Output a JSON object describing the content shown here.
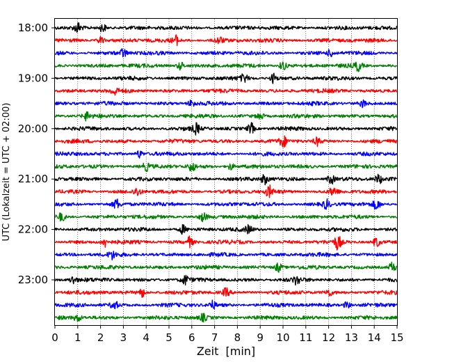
{
  "chart_data": {
    "type": "line",
    "subtype": "helicorder-seismogram",
    "xlabel": "Zeit  [min]",
    "ylabel": "UTC (Lokalzeit = UTC + 02:00)",
    "xlim": [
      0,
      15
    ],
    "xticks": [
      "0",
      "1",
      "2",
      "3",
      "4",
      "5",
      "6",
      "7",
      "8",
      "9",
      "10",
      "11",
      "12",
      "13",
      "14",
      "15"
    ],
    "y_tick_labels": [
      "18:00",
      "19:00",
      "20:00",
      "21:00",
      "22:00",
      "23:00"
    ],
    "y_tick_trace_index": [
      0,
      4,
      8,
      12,
      16,
      20
    ],
    "trace_minutes": 15,
    "vertical_grid": true,
    "vertical_grid_style": "dotted",
    "colors": [
      "#000000",
      "#ff0000",
      "#0000ff",
      "#008000"
    ],
    "traces": [
      {
        "start": "18:00",
        "color": "#000000",
        "events": [
          {
            "t": 1.0,
            "a": 1.6
          },
          {
            "t": 2.1,
            "a": 1.5
          }
        ]
      },
      {
        "start": "18:15",
        "color": "#ff0000",
        "events": [
          {
            "t": 2.0,
            "a": 1.2
          },
          {
            "t": 5.3,
            "a": 1.5
          },
          {
            "t": 7.2,
            "a": 1.1
          }
        ]
      },
      {
        "start": "18:30",
        "color": "#0000ff",
        "events": [
          {
            "t": 3.0,
            "a": 1.4
          },
          {
            "t": 12.1,
            "a": 1.1
          }
        ]
      },
      {
        "start": "18:45",
        "color": "#008000",
        "events": [
          {
            "t": 5.5,
            "a": 1.3
          },
          {
            "t": 10.0,
            "a": 1.6
          },
          {
            "t": 13.3,
            "a": 1.6
          }
        ]
      },
      {
        "start": "19:00",
        "color": "#000000",
        "events": [
          {
            "t": 8.3,
            "a": 1.3
          },
          {
            "t": 9.6,
            "a": 1.6
          }
        ]
      },
      {
        "start": "19:15",
        "color": "#ff0000",
        "events": [
          {
            "t": 2.6,
            "a": 1.2
          }
        ]
      },
      {
        "start": "19:30",
        "color": "#0000ff",
        "events": [
          {
            "t": 6.0,
            "a": 1.1
          },
          {
            "t": 13.5,
            "a": 1.1
          }
        ]
      },
      {
        "start": "19:45",
        "color": "#008000",
        "events": [
          {
            "t": 1.4,
            "a": 1.3
          },
          {
            "t": 9.0,
            "a": 1.1
          }
        ]
      },
      {
        "start": "20:00",
        "color": "#000000",
        "events": [
          {
            "t": 6.2,
            "a": 1.6
          },
          {
            "t": 8.6,
            "a": 1.8
          }
        ]
      },
      {
        "start": "20:15",
        "color": "#ff0000",
        "events": [
          {
            "t": 10.0,
            "a": 1.7
          },
          {
            "t": 11.5,
            "a": 1.3
          }
        ]
      },
      {
        "start": "20:30",
        "color": "#0000ff",
        "events": [
          {
            "t": 3.7,
            "a": 1.3
          }
        ]
      },
      {
        "start": "20:45",
        "color": "#008000",
        "events": [
          {
            "t": 4.0,
            "a": 1.2
          },
          {
            "t": 6.0,
            "a": 1.5
          },
          {
            "t": 7.7,
            "a": 1.1
          }
        ]
      },
      {
        "start": "21:00",
        "color": "#000000",
        "events": [
          {
            "t": 9.2,
            "a": 1.6
          },
          {
            "t": 12.1,
            "a": 1.6
          },
          {
            "t": 14.2,
            "a": 1.4
          }
        ]
      },
      {
        "start": "21:15",
        "color": "#ff0000",
        "events": [
          {
            "t": 3.6,
            "a": 1.3
          },
          {
            "t": 9.4,
            "a": 1.8
          },
          {
            "t": 12.2,
            "a": 1.5
          }
        ]
      },
      {
        "start": "21:30",
        "color": "#0000ff",
        "events": [
          {
            "t": 2.7,
            "a": 1.5
          },
          {
            "t": 11.9,
            "a": 1.4
          },
          {
            "t": 14.1,
            "a": 1.6
          }
        ]
      },
      {
        "start": "21:45",
        "color": "#008000",
        "events": [
          {
            "t": 0.3,
            "a": 1.3
          },
          {
            "t": 6.5,
            "a": 1.3
          }
        ]
      },
      {
        "start": "22:00",
        "color": "#000000",
        "events": [
          {
            "t": 5.6,
            "a": 1.4
          },
          {
            "t": 8.5,
            "a": 1.2
          }
        ]
      },
      {
        "start": "22:15",
        "color": "#ff0000",
        "events": [
          {
            "t": 2.2,
            "a": 1.5
          },
          {
            "t": 5.9,
            "a": 1.6
          },
          {
            "t": 12.4,
            "a": 2.2
          },
          {
            "t": 14.1,
            "a": 1.5
          }
        ]
      },
      {
        "start": "22:30",
        "color": "#0000ff",
        "events": [
          {
            "t": 2.5,
            "a": 1.2
          }
        ]
      },
      {
        "start": "22:45",
        "color": "#008000",
        "events": [
          {
            "t": 9.8,
            "a": 1.5
          },
          {
            "t": 14.8,
            "a": 1.6
          }
        ]
      },
      {
        "start": "23:00",
        "color": "#000000",
        "events": [
          {
            "t": 0.8,
            "a": 1.3
          },
          {
            "t": 5.7,
            "a": 1.5
          },
          {
            "t": 10.6,
            "a": 1.3
          }
        ]
      },
      {
        "start": "23:15",
        "color": "#ff0000",
        "events": [
          {
            "t": 3.8,
            "a": 1.5
          },
          {
            "t": 7.5,
            "a": 1.3
          },
          {
            "t": 12.0,
            "a": 1.1
          }
        ]
      },
      {
        "start": "23:30",
        "color": "#0000ff",
        "events": [
          {
            "t": 2.6,
            "a": 1.5
          },
          {
            "t": 6.9,
            "a": 1.3
          },
          {
            "t": 12.8,
            "a": 1.1
          }
        ]
      },
      {
        "start": "23:45",
        "color": "#008000",
        "events": [
          {
            "t": 1.0,
            "a": 1.1
          },
          {
            "t": 6.5,
            "a": 1.1
          }
        ]
      }
    ]
  }
}
